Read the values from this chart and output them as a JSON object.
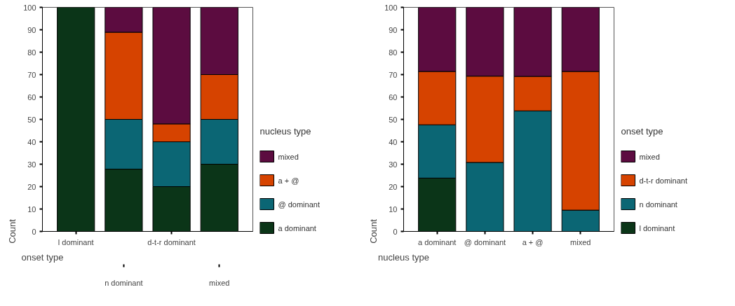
{
  "chart_data": [
    {
      "type": "bar",
      "stacked": true,
      "xlabel": "onset type",
      "ylabel": "Count",
      "legend_title": "nucleus type",
      "legend": "right",
      "grid": false,
      "categories": [
        "l dominant",
        "n dominant",
        "d-t-r dominant",
        "mixed"
      ],
      "ylim": [
        0,
        100
      ],
      "yticks": [
        0,
        10,
        20,
        30,
        40,
        50,
        60,
        70,
        80,
        90,
        100
      ],
      "series": [
        {
          "name": "a dominant",
          "color": "#0b3518",
          "values": [
            100,
            27.8,
            20,
            30
          ]
        },
        {
          "name": "@ dominant",
          "color": "#0b6674",
          "values": [
            0,
            22.2,
            20,
            20
          ]
        },
        {
          "name": "a + @",
          "color": "#d64300",
          "values": [
            0,
            38.9,
            8,
            20
          ]
        },
        {
          "name": "mixed",
          "color": "#5c0c40",
          "values": [
            0,
            11.1,
            52,
            30
          ]
        }
      ]
    },
    {
      "type": "bar",
      "stacked": true,
      "xlabel": "nucleus type",
      "ylabel": "Count",
      "legend_title": "onset type",
      "legend": "right",
      "grid": false,
      "categories": [
        "a dominant",
        "@ dominant",
        "a + @",
        "mixed"
      ],
      "ylim": [
        0,
        100
      ],
      "yticks": [
        0,
        10,
        20,
        30,
        40,
        50,
        60,
        70,
        80,
        90,
        100
      ],
      "series": [
        {
          "name": "l dominant",
          "color": "#0b3518",
          "values": [
            23.8,
            0,
            0,
            0
          ]
        },
        {
          "name": "n dominant",
          "color": "#0b6674",
          "values": [
            23.8,
            30.8,
            53.8,
            9.5
          ]
        },
        {
          "name": "d-t-r dominant",
          "color": "#d64300",
          "values": [
            23.8,
            38.5,
            15.4,
            61.9
          ]
        },
        {
          "name": "mixed",
          "color": "#5c0c40",
          "values": [
            28.6,
            30.8,
            30.8,
            28.6
          ]
        }
      ]
    }
  ]
}
